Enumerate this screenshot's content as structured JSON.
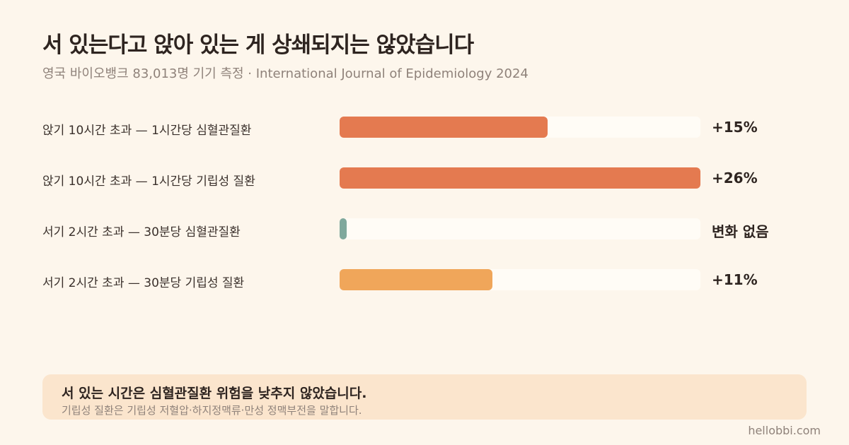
{
  "header": {
    "title": "서 있는다고 앉아 있는 게 상쇄되지는 않았습니다",
    "subtitle": "영국 바이오뱅크 83,013명 기기 측정 · International Journal of Epidemiology 2024"
  },
  "chart_data": {
    "type": "bar",
    "orientation": "horizontal",
    "unit": "%",
    "xlim": [
      0,
      26
    ],
    "grid": false,
    "legend": "none",
    "rows": [
      {
        "label": "앉기 10시간 초과 — 1시간당 심혈관질환",
        "value": 15,
        "value_label": "+15%",
        "color": "#e47a50"
      },
      {
        "label": "앉기 10시간 초과 — 1시간당 기립성 질환",
        "value": 26,
        "value_label": "+26%",
        "color": "#e47a50"
      },
      {
        "label": "서기 2시간 초과 — 30분당 심혈관질환",
        "value": 0,
        "value_label": "변화 없음",
        "color": "#7fa89c"
      },
      {
        "label": "서기 2시간 초과 — 30분당 기립성 질환",
        "value": 11,
        "value_label": "+11%",
        "color": "#f0a65a"
      }
    ]
  },
  "callout": {
    "title": "서 있는 시간은 심혈관질환 위험을 낮추지 않았습니다.",
    "text": "기립성 질환은 기립성 저혈압·하지정맥류·만성 정맥부전을 말합니다."
  },
  "footer": {
    "credit": "hellobbi.com"
  }
}
